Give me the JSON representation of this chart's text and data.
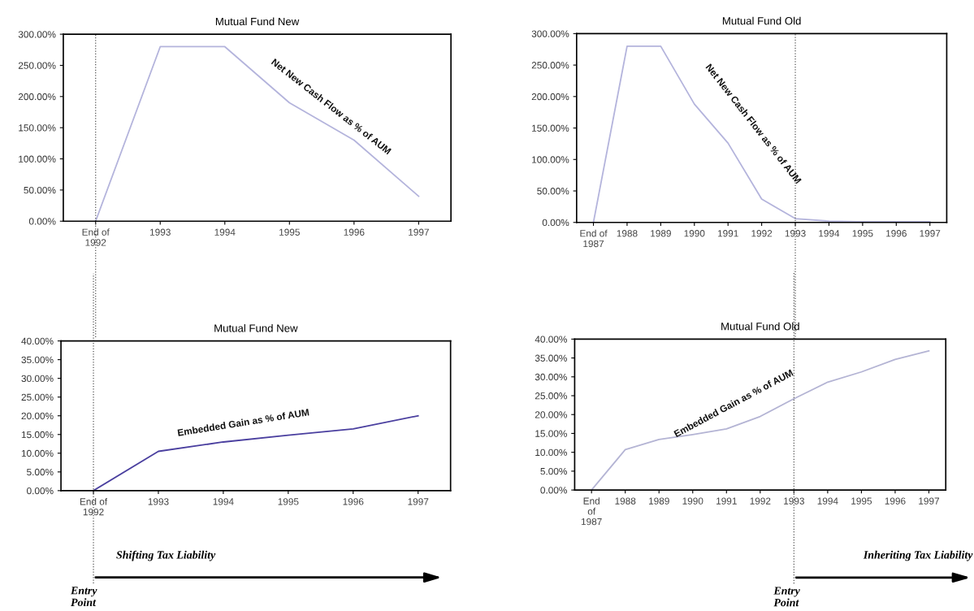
{
  "chart_data": [
    {
      "type": "line",
      "title": "Mutual Fund New",
      "categories": [
        "End of\n1992",
        "1993",
        "1994",
        "1995",
        "1996",
        "1997"
      ],
      "series": [
        {
          "color": "#b4b4dc",
          "values": [
            0,
            280,
            280,
            190,
            130,
            40
          ]
        }
      ],
      "ylim": [
        0,
        300
      ],
      "yticks": [
        {
          "value": 0,
          "label": "0.00%"
        },
        {
          "value": 50,
          "label": "50.00%"
        },
        {
          "value": 100,
          "label": "100.00%"
        },
        {
          "value": 150,
          "label": "150.00%"
        },
        {
          "value": 200,
          "label": "200.00%"
        },
        {
          "value": 250,
          "label": "250.00%"
        },
        {
          "value": 300,
          "label": "300.00%"
        }
      ],
      "annotations": [
        "Net New Cash Flow as % of AUM"
      ],
      "ref_lines": [
        {
          "axis": "x",
          "value": "End of\n1992",
          "line_style": "dotted",
          "color": "#555555"
        }
      ],
      "grid": false,
      "marker": "none",
      "line_style": "solid"
    },
    {
      "type": "line",
      "title": "Mutual Fund Old",
      "categories": [
        "End of\n1987",
        "1988",
        "1989",
        "1990",
        "1991",
        "1992",
        "1993",
        "1994",
        "1995",
        "1996",
        "1997"
      ],
      "series": [
        {
          "color": "#b4b4dc",
          "values": [
            0,
            280,
            280,
            188,
            126,
            37,
            6,
            2,
            1,
            1,
            1
          ]
        }
      ],
      "ylim": [
        0,
        300
      ],
      "yticks": [
        {
          "value": 0,
          "label": "0.00%"
        },
        {
          "value": 50,
          "label": "50.00%"
        },
        {
          "value": 100,
          "label": "100.00%"
        },
        {
          "value": 150,
          "label": "150.00%"
        },
        {
          "value": 200,
          "label": "200.00%"
        },
        {
          "value": 250,
          "label": "250.00%"
        },
        {
          "value": 300,
          "label": "300.00%"
        }
      ],
      "annotations": [
        "Net New Cash Flow as % of AUM"
      ],
      "ref_lines": [
        {
          "axis": "x",
          "value": "1993",
          "line_style": "dotted",
          "color": "#555555"
        }
      ],
      "grid": false,
      "marker": "none",
      "line_style": "solid"
    },
    {
      "type": "line",
      "title": "Mutual Fund New",
      "categories": [
        "End of\n1992",
        "1993",
        "1994",
        "1995",
        "1996",
        "1997"
      ],
      "series": [
        {
          "color": "#4a3f9f",
          "values": [
            0,
            10.5,
            13,
            14.8,
            16.5,
            20
          ]
        }
      ],
      "ylim": [
        0,
        40
      ],
      "yticks": [
        {
          "value": 0,
          "label": "0.00%"
        },
        {
          "value": 5,
          "label": "5.00%"
        },
        {
          "value": 10,
          "label": "10.00%"
        },
        {
          "value": 15,
          "label": "15.00%"
        },
        {
          "value": 20,
          "label": "20.00%"
        },
        {
          "value": 25,
          "label": "25.00%"
        },
        {
          "value": 30,
          "label": "30.00%"
        },
        {
          "value": 35,
          "label": "35.00%"
        },
        {
          "value": 40,
          "label": "40.00%"
        }
      ],
      "annotations": [
        "Embedded Gain as % of AUM",
        "Shifting Tax Liability",
        "Entry\nPoint"
      ],
      "ref_lines": [
        {
          "axis": "x",
          "value": "End of\n1992",
          "line_style": "dotted",
          "color": "#555555"
        }
      ],
      "grid": false,
      "marker": "none",
      "line_style": "solid"
    },
    {
      "type": "line",
      "title": "Mutual Fund Old",
      "categories": [
        "End\nof\n1987",
        "1988",
        "1989",
        "1990",
        "1991",
        "1992",
        "1993",
        "1994",
        "1995",
        "1996",
        "1997"
      ],
      "series": [
        {
          "color": "#b4b4d4",
          "values": [
            0,
            10.7,
            13.4,
            14.7,
            16.2,
            19.5,
            24.2,
            28.6,
            31.3,
            34.6,
            36.9
          ]
        }
      ],
      "ylim": [
        0,
        40
      ],
      "yticks": [
        {
          "value": 0,
          "label": "0.00%"
        },
        {
          "value": 5,
          "label": "5.00%"
        },
        {
          "value": 10,
          "label": "10.00%"
        },
        {
          "value": 15,
          "label": "15.00%"
        },
        {
          "value": 20,
          "label": "20.00%"
        },
        {
          "value": 25,
          "label": "25.00%"
        },
        {
          "value": 30,
          "label": "30.00%"
        },
        {
          "value": 35,
          "label": "35.00%"
        },
        {
          "value": 40,
          "label": "40.00%"
        }
      ],
      "annotations": [
        "Embedded Gain as % of AUM",
        "Inheriting Tax Liability",
        "Entry\nPoint"
      ],
      "ref_lines": [
        {
          "axis": "x",
          "value": "1993",
          "line_style": "dotted",
          "color": "#555555"
        }
      ],
      "grid": false,
      "marker": "none",
      "line_style": "solid"
    }
  ]
}
